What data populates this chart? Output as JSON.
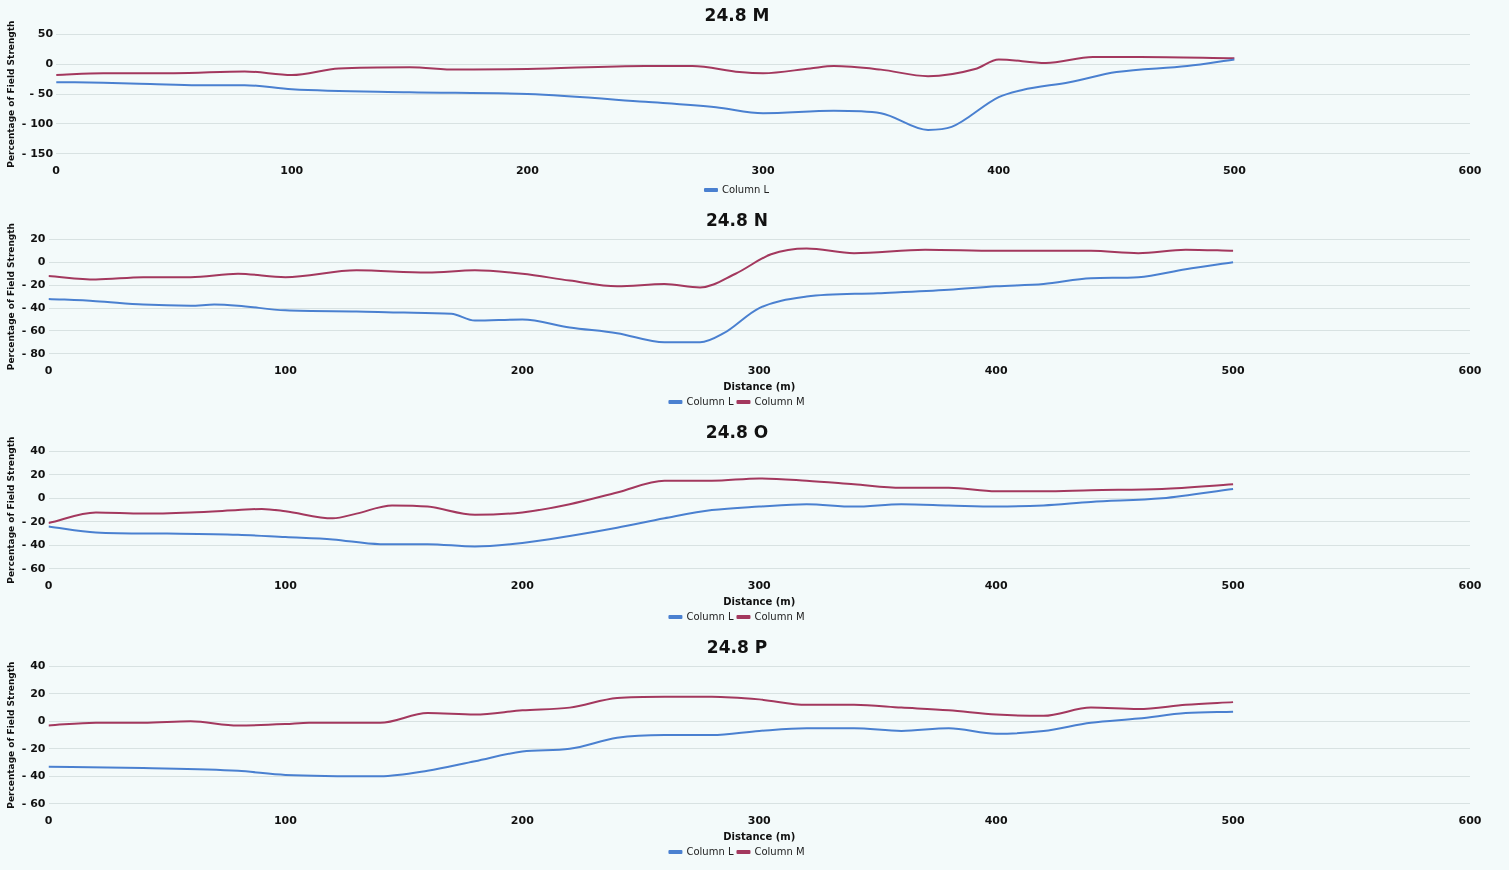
{
  "chart_data": [
    {
      "type": "line",
      "title": "24.8 M",
      "ylabel": "Percentage of Field Strength",
      "xlim": [
        0,
        600
      ],
      "xticks": [
        0,
        100,
        200,
        300,
        400,
        500,
        600
      ],
      "ylim": [
        -150,
        50
      ],
      "yticks": [
        {
          "value": -150,
          "label": "- 150"
        },
        {
          "value": -100,
          "label": "- 100"
        },
        {
          "value": -50,
          "label": "- 50"
        },
        0,
        50
      ],
      "grid": "y",
      "legend": "bottom",
      "marker": "none",
      "line_style": "solid",
      "x": [
        0,
        20,
        40,
        60,
        80,
        100,
        150,
        200,
        250,
        280,
        300,
        330,
        350,
        370,
        380,
        400,
        410,
        430,
        450,
        480,
        500
      ],
      "series": [
        {
          "name": "Column L",
          "color": "#4a80d0",
          "values": [
            -30,
            -31,
            -33,
            -35,
            -35,
            -42,
            -47,
            -50,
            -63,
            -72,
            -82,
            -78,
            -82,
            -110,
            -105,
            -55,
            -43,
            -30,
            -13,
            -3,
            8
          ]
        },
        {
          "color": "#a3385e",
          "x": [
            0,
            20,
            50,
            80,
            100,
            120,
            150,
            170,
            200,
            250,
            270,
            290,
            300,
            320,
            330,
            350,
            370,
            390,
            400,
            420,
            440,
            460,
            500
          ],
          "values": [
            -18,
            -15,
            -15,
            -12,
            -18,
            -7,
            -5,
            -9,
            -8,
            -3,
            -3,
            -13,
            -15,
            -7,
            -3,
            -9,
            -20,
            -8,
            8,
            2,
            12,
            12,
            10
          ]
        }
      ]
    },
    {
      "type": "line",
      "title": "24.8 N",
      "xlabel": "Distance (m)",
      "ylabel": "Percentage of Field Strength",
      "xlim": [
        0,
        600
      ],
      "xticks": [
        0,
        100,
        200,
        300,
        400,
        500,
        600
      ],
      "ylim": [
        -80,
        20
      ],
      "yticks": [
        {
          "value": -80,
          "label": "- 80"
        },
        {
          "value": -60,
          "label": "- 60"
        },
        {
          "value": -40,
          "label": "- 40"
        },
        {
          "value": -20,
          "label": "- 20"
        },
        0,
        20
      ],
      "grid": "y",
      "legend": "bottom",
      "marker": "none",
      "line_style": "solid",
      "series": [
        {
          "name": "Column L",
          "color": "#4a80d0",
          "x": [
            0,
            20,
            40,
            60,
            70,
            80,
            100,
            130,
            150,
            170,
            180,
            200,
            220,
            240,
            260,
            275,
            285,
            300,
            320,
            350,
            380,
            400,
            420,
            440,
            460,
            480,
            500
          ],
          "values": [
            -32,
            -34,
            -37,
            -38,
            -37,
            -38,
            -42,
            -43,
            -44,
            -45,
            -51,
            -50,
            -57,
            -62,
            -70,
            -70,
            -62,
            -40,
            -30,
            -27,
            -24,
            -21,
            -19,
            -14,
            -13,
            -6,
            0
          ]
        },
        {
          "name": "Column M",
          "color": "#a3385e",
          "x": [
            0,
            20,
            40,
            60,
            80,
            100,
            130,
            160,
            180,
            200,
            220,
            240,
            260,
            275,
            290,
            305,
            320,
            340,
            370,
            400,
            440,
            460,
            480,
            500
          ],
          "values": [
            -12,
            -15,
            -13,
            -13,
            -10,
            -13,
            -7,
            -9,
            -7,
            -10,
            -16,
            -21,
            -19,
            -22,
            -10,
            7,
            12,
            8,
            11,
            10,
            10,
            8,
            11,
            10
          ]
        }
      ]
    },
    {
      "type": "line",
      "title": "24.8 O",
      "xlabel": "Distance (m)",
      "ylabel": "Percentage of Field Strength",
      "xlim": [
        0,
        600
      ],
      "xticks": [
        0,
        100,
        200,
        300,
        400,
        500,
        600
      ],
      "ylim": [
        -60,
        40
      ],
      "yticks": [
        {
          "value": -60,
          "label": "- 60"
        },
        {
          "value": -40,
          "label": "- 40"
        },
        {
          "value": -20,
          "label": "- 20"
        },
        0,
        20,
        40
      ],
      "grid": "y",
      "legend": "bottom",
      "marker": "none",
      "line_style": "solid",
      "series": [
        {
          "name": "Column L",
          "color": "#4a80d0",
          "x": [
            0,
            20,
            50,
            80,
            100,
            120,
            140,
            160,
            180,
            200,
            220,
            240,
            260,
            280,
            300,
            320,
            340,
            360,
            380,
            400,
            420,
            440,
            470,
            500
          ],
          "values": [
            -24,
            -29,
            -30,
            -31,
            -33,
            -35,
            -39,
            -39,
            -41,
            -38,
            -32,
            -25,
            -17,
            -10,
            -7,
            -5,
            -7,
            -5,
            -6,
            -7,
            -6,
            -3,
            0,
            8
          ]
        },
        {
          "name": "Column M",
          "color": "#a3385e",
          "x": [
            0,
            20,
            40,
            60,
            80,
            90,
            100,
            120,
            130,
            145,
            160,
            180,
            200,
            220,
            240,
            260,
            280,
            300,
            320,
            340,
            360,
            380,
            400,
            420,
            440,
            470,
            500
          ],
          "values": [
            -21,
            -12,
            -13,
            -12,
            -10,
            -9,
            -11,
            -17,
            -13,
            -6,
            -7,
            -14,
            -12,
            -5,
            5,
            15,
            15,
            17,
            15,
            12,
            9,
            9,
            6,
            6,
            7,
            8,
            12
          ]
        }
      ]
    },
    {
      "type": "line",
      "title": "24.8 P",
      "xlabel": "Distance (m)",
      "ylabel": "Percentage of Field Strength",
      "xlim": [
        0,
        600
      ],
      "xticks": [
        0,
        100,
        200,
        300,
        400,
        500,
        600
      ],
      "ylim": [
        -60,
        40
      ],
      "yticks": [
        {
          "value": -60,
          "label": "- 60"
        },
        {
          "value": -40,
          "label": "- 40"
        },
        {
          "value": -20,
          "label": "- 20"
        },
        0,
        20,
        40
      ],
      "grid": "y",
      "legend": "bottom",
      "marker": "none",
      "line_style": "solid",
      "series": [
        {
          "name": "Column L",
          "color": "#4a80d0",
          "x": [
            0,
            40,
            80,
            100,
            140,
            160,
            180,
            200,
            220,
            240,
            260,
            280,
            300,
            320,
            340,
            360,
            380,
            400,
            420,
            440,
            460,
            480,
            500
          ],
          "values": [
            -33,
            -34,
            -36,
            -39,
            -40,
            -36,
            -29,
            -22,
            -20,
            -12,
            -10,
            -10,
            -7,
            -5,
            -5,
            -7,
            -5,
            -9,
            -7,
            -1,
            2,
            6,
            7
          ]
        },
        {
          "name": "Column M",
          "color": "#a3385e",
          "x": [
            0,
            20,
            40,
            60,
            80,
            100,
            110,
            140,
            160,
            180,
            200,
            220,
            240,
            260,
            280,
            300,
            320,
            340,
            360,
            380,
            400,
            420,
            440,
            460,
            480,
            500
          ],
          "values": [
            -3,
            -1,
            -1,
            0,
            -3,
            -2,
            -1,
            -1,
            6,
            5,
            8,
            10,
            17,
            18,
            18,
            16,
            12,
            12,
            10,
            8,
            5,
            4,
            10,
            9,
            12,
            14
          ]
        }
      ]
    }
  ]
}
